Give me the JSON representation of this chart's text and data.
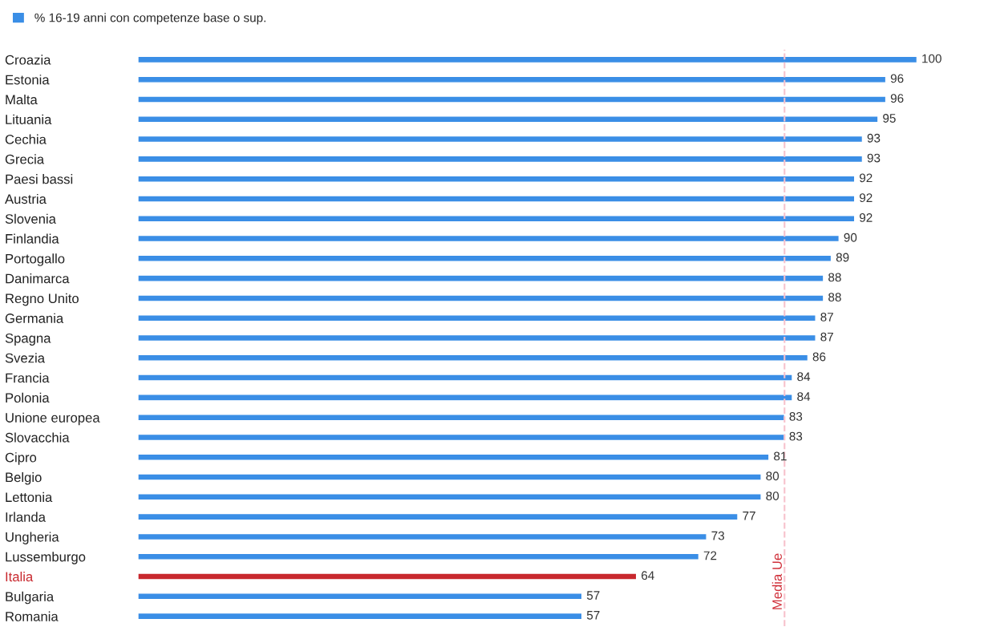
{
  "chart_data": {
    "type": "bar",
    "orientation": "horizontal",
    "categories": [
      "Croazia",
      "Estonia",
      "Malta",
      "Lituania",
      "Cechia",
      "Grecia",
      "Paesi bassi",
      "Austria",
      "Slovenia",
      "Finlandia",
      "Portogallo",
      "Danimarca",
      "Regno Unito",
      "Germania",
      "Spagna",
      "Svezia",
      "Francia",
      "Polonia",
      "Unione europea",
      "Slovacchia",
      "Cipro",
      "Belgio",
      "Lettonia",
      "Irlanda",
      "Ungheria",
      "Lussemburgo",
      "Italia",
      "Bulgaria",
      "Romania"
    ],
    "series": [
      {
        "name": "% 16-19 anni con competenze base o sup.",
        "color": "#3a8ee6",
        "values": [
          100,
          96,
          96,
          95,
          93,
          93,
          92,
          92,
          92,
          90,
          89,
          88,
          88,
          87,
          87,
          86,
          84,
          84,
          83,
          83,
          81,
          80,
          80,
          77,
          73,
          72,
          64,
          57,
          57
        ],
        "colors": [
          "#3a8ee6",
          "#3a8ee6",
          "#3a8ee6",
          "#3a8ee6",
          "#3a8ee6",
          "#3a8ee6",
          "#3a8ee6",
          "#3a8ee6",
          "#3a8ee6",
          "#3a8ee6",
          "#3a8ee6",
          "#3a8ee6",
          "#3a8ee6",
          "#3a8ee6",
          "#3a8ee6",
          "#3a8ee6",
          "#3a8ee6",
          "#3a8ee6",
          "#3a8ee6",
          "#3a8ee6",
          "#3a8ee6",
          "#3a8ee6",
          "#3a8ee6",
          "#3a8ee6",
          "#3a8ee6",
          "#3a8ee6",
          "#c8282e",
          "#3a8ee6",
          "#3a8ee6"
        ]
      }
    ],
    "data_labels": true,
    "ref_lines": [
      {
        "axis": "x",
        "value": 83,
        "label": "Media Ue",
        "color": "#f7c1cc",
        "line_style": "dashed"
      }
    ],
    "legend": "top left",
    "grid": false,
    "tick_labels": "y"
  }
}
